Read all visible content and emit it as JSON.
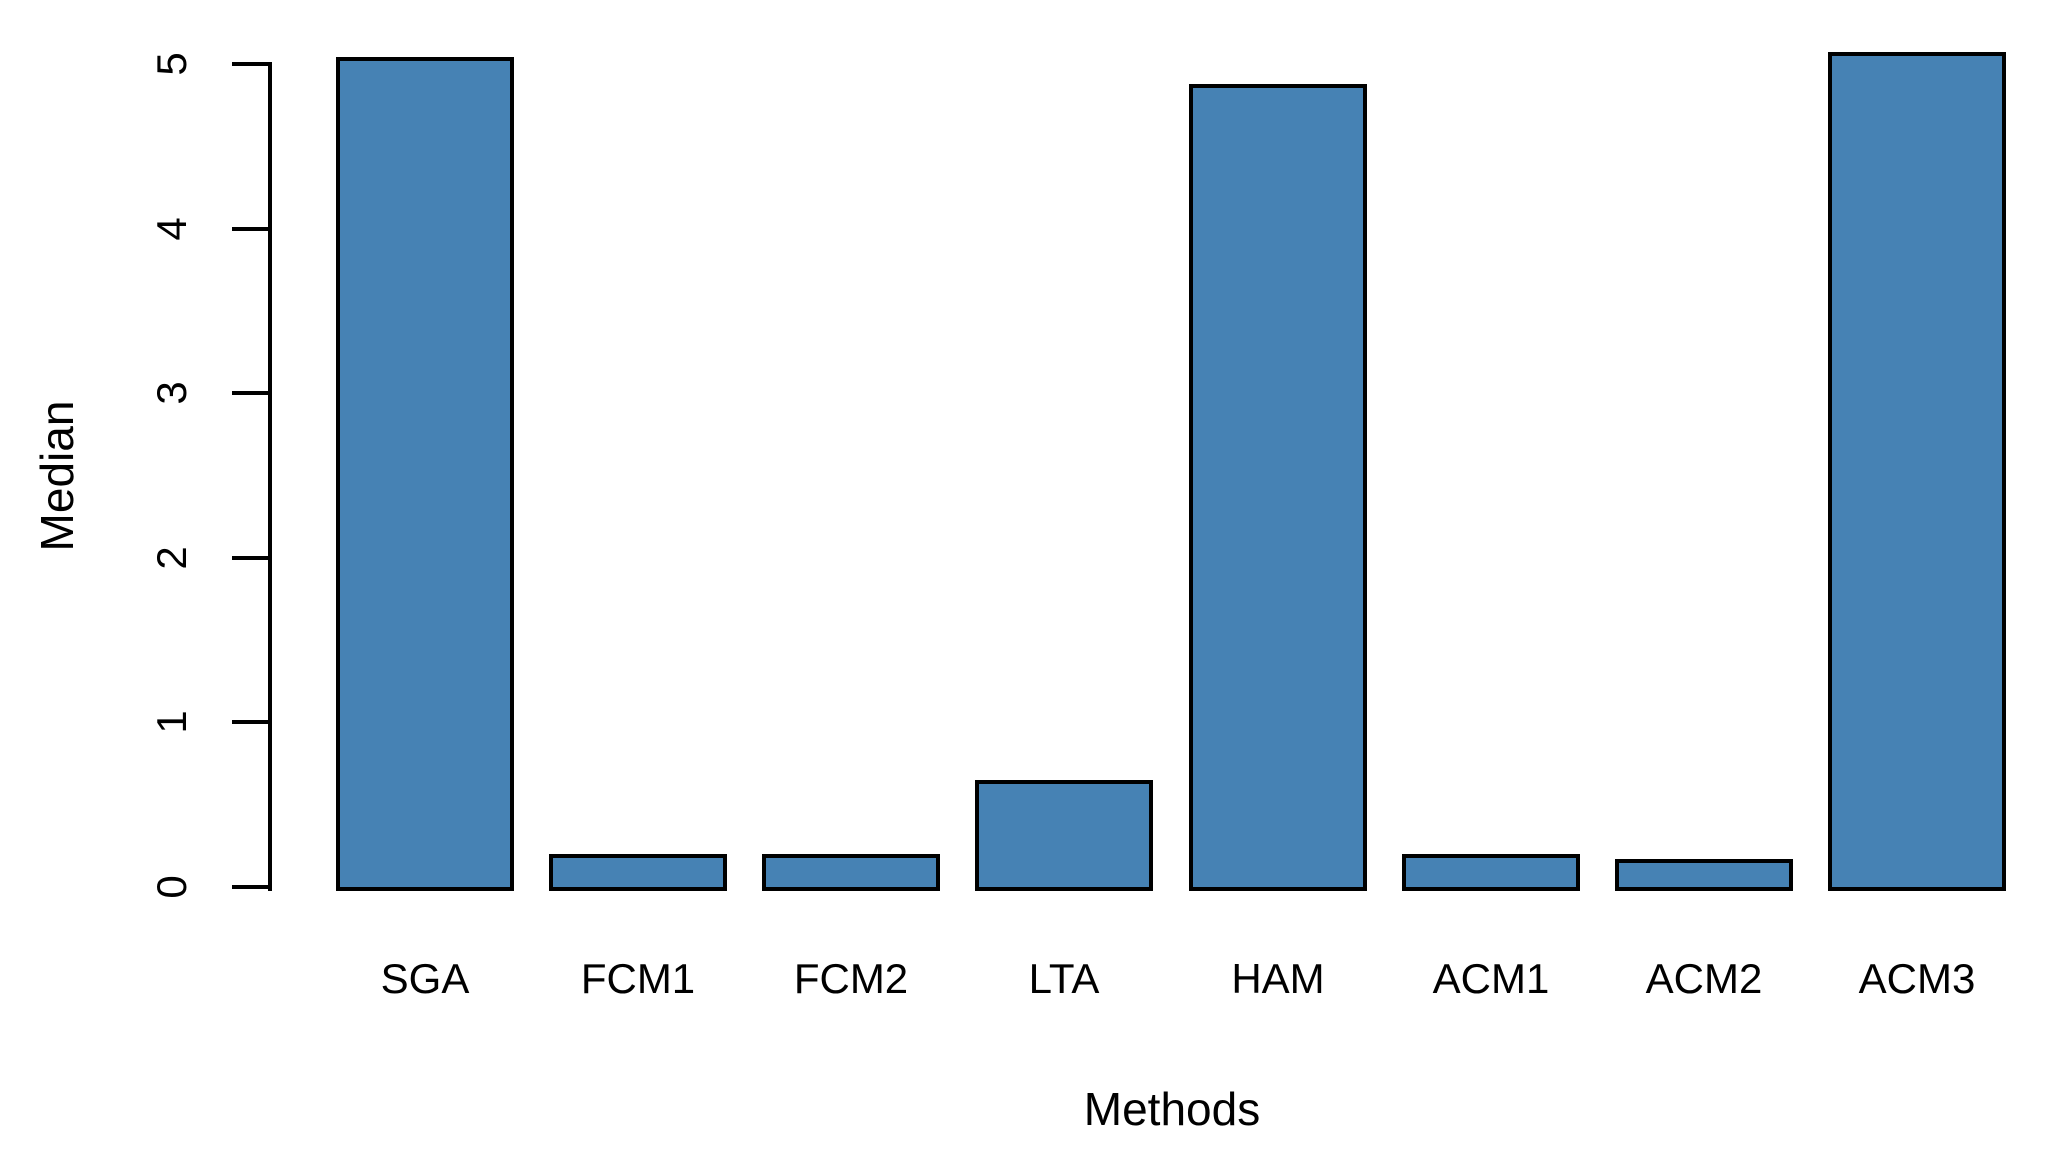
{
  "chart_data": {
    "type": "bar",
    "title": "",
    "xlabel": "Methods",
    "ylabel": "Median",
    "categories": [
      "SGA",
      "FCM1",
      "FCM2",
      "LTA",
      "HAM",
      "ACM1",
      "ACM2",
      "ACM3"
    ],
    "values": [
      5.04,
      0.2,
      0.2,
      0.65,
      4.88,
      0.2,
      0.17,
      5.07
    ],
    "ylim": [
      0,
      5
    ],
    "yticks": [
      0,
      1,
      2,
      3,
      4,
      5
    ],
    "grid": false,
    "legend_position": "none",
    "bar_color": "#4682B4",
    "bar_border_color": "#000000",
    "text_color": "#000000"
  }
}
